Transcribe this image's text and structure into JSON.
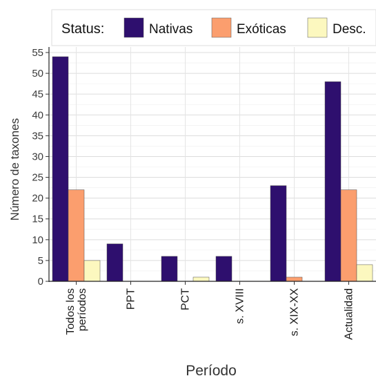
{
  "chart_data": {
    "type": "bar",
    "title": "",
    "xlabel": "Período",
    "ylabel": "Número de taxones",
    "ylim": [
      0,
      55
    ],
    "yticks": [
      0,
      5,
      10,
      15,
      20,
      25,
      30,
      35,
      40,
      45,
      50,
      55
    ],
    "grid": true,
    "legend_position": "top-right",
    "legend_title": "Status:",
    "categories": [
      [
        "Todos los",
        "períodos"
      ],
      [
        "PPT"
      ],
      [
        "PCT"
      ],
      [
        "s. XVIII"
      ],
      [
        "s. XIX-XX"
      ],
      [
        "Actualidad"
      ]
    ],
    "series": [
      {
        "name": "Nativas",
        "color": "#2e0f6e",
        "values": [
          54,
          9,
          6,
          6,
          23,
          48
        ]
      },
      {
        "name": "Exóticas",
        "color": "#fb9e6e",
        "values": [
          22,
          0,
          0,
          0,
          1,
          22
        ]
      },
      {
        "name": "Desc.",
        "color": "#fcf8bf",
        "values": [
          5,
          0,
          1,
          0,
          0,
          4
        ]
      }
    ]
  }
}
